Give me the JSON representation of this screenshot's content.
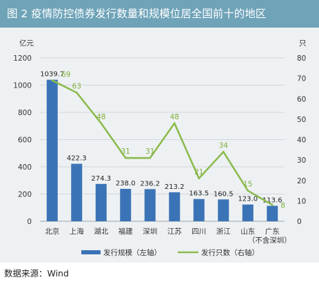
{
  "title": "图 2  疫情防控债券发行数量和规模位居全国前十的地区",
  "source": "数据来源：Wind",
  "colors": {
    "header_bg": "#6ea3b8",
    "chart_bg": "#eef1f3",
    "bar": "#3b74b6",
    "line": "#8cbb4e",
    "line_label": "#7fae3c"
  },
  "chart_data": {
    "type": "bar",
    "categories": [
      "北京",
      "上海",
      "湖北",
      "福建",
      "深圳",
      "江苏",
      "四川",
      "浙江",
      "山东",
      "广东"
    ],
    "category_notes": [
      "",
      "",
      "",
      "",
      "",
      "",
      "",
      "",
      "",
      "（不含深圳）"
    ],
    "y_left_unit": "亿元",
    "y_right_unit": "只",
    "ylim_left": [
      0,
      1200
    ],
    "yticks_left": [
      0,
      200,
      400,
      600,
      800,
      1000,
      1200
    ],
    "ylim_right": [
      0,
      80
    ],
    "yticks_right": [
      0,
      10,
      20,
      30,
      40,
      50,
      60,
      70,
      80
    ],
    "series": [
      {
        "name": "发行规模（左轴）",
        "type": "bar",
        "axis": "left",
        "values": [
          1039.7,
          422.3,
          274.3,
          238.0,
          236.2,
          213.2,
          163.5,
          160.5,
          123.0,
          113.6
        ],
        "labels": [
          "1039.7",
          "422.3",
          "274.3",
          "238.0",
          "236.2",
          "213.2",
          "163.5",
          "160.5",
          "123.0",
          "113.6"
        ]
      },
      {
        "name": "发行只数（右轴）",
        "type": "line",
        "axis": "right",
        "values": [
          69,
          63,
          48,
          31,
          31,
          48,
          21,
          34,
          15,
          8
        ],
        "labels": [
          "69",
          "63",
          "48",
          "31",
          "31",
          "48",
          "21",
          "34",
          "15",
          "8"
        ]
      }
    ],
    "grid": true,
    "legend": "bottom"
  }
}
